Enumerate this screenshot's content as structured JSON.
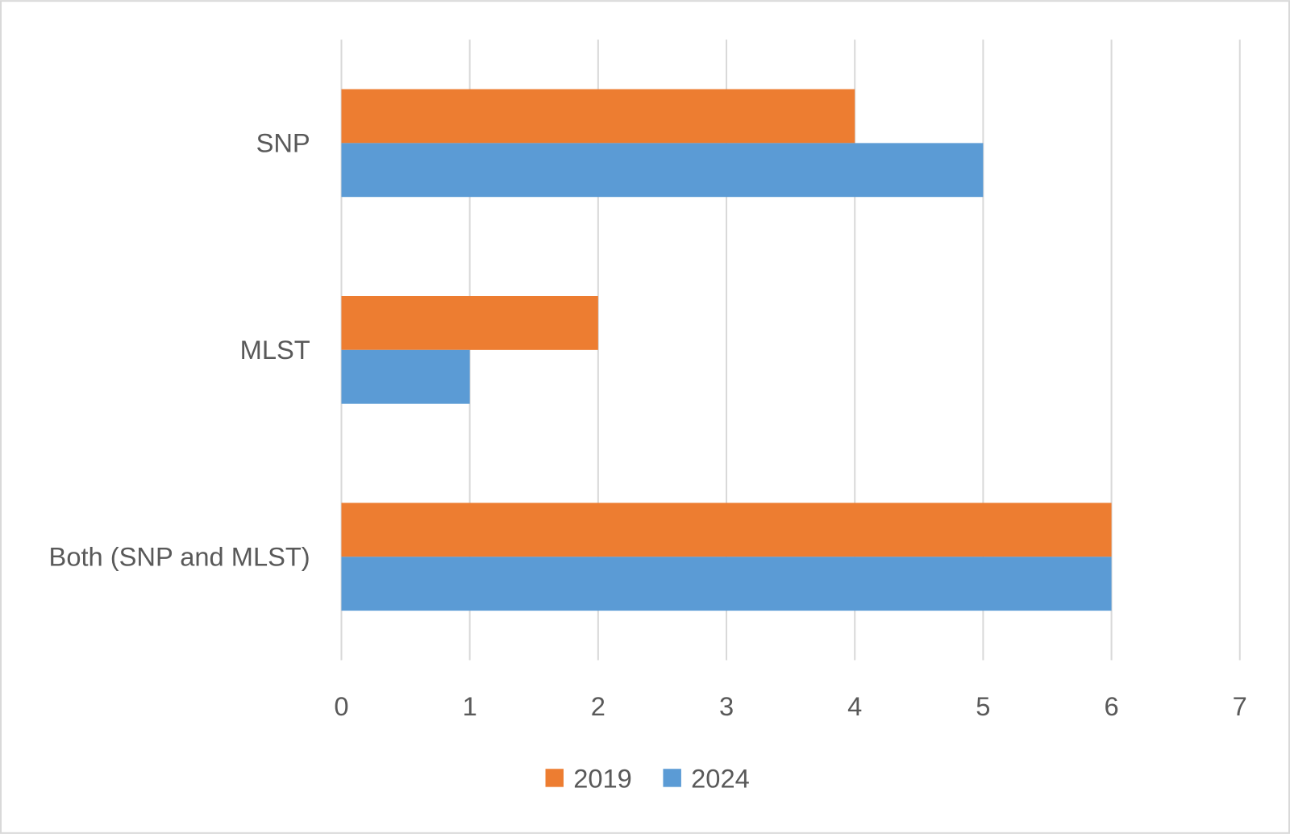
{
  "chart_data": {
    "type": "bar",
    "orientation": "horizontal",
    "categories": [
      "SNP",
      "MLST",
      "Both (SNP and MLST)"
    ],
    "series": [
      {
        "name": "2019",
        "values": [
          4,
          2,
          6
        ],
        "color": "#ED7D31"
      },
      {
        "name": "2024",
        "values": [
          5,
          1,
          6
        ],
        "color": "#5B9BD5"
      }
    ],
    "xlim": [
      0,
      7
    ],
    "xticks": [
      "0",
      "1",
      "2",
      "3",
      "4",
      "5",
      "6",
      "7"
    ],
    "grid": true,
    "legend_position": "bottom",
    "title": "",
    "xlabel": "",
    "ylabel": ""
  }
}
